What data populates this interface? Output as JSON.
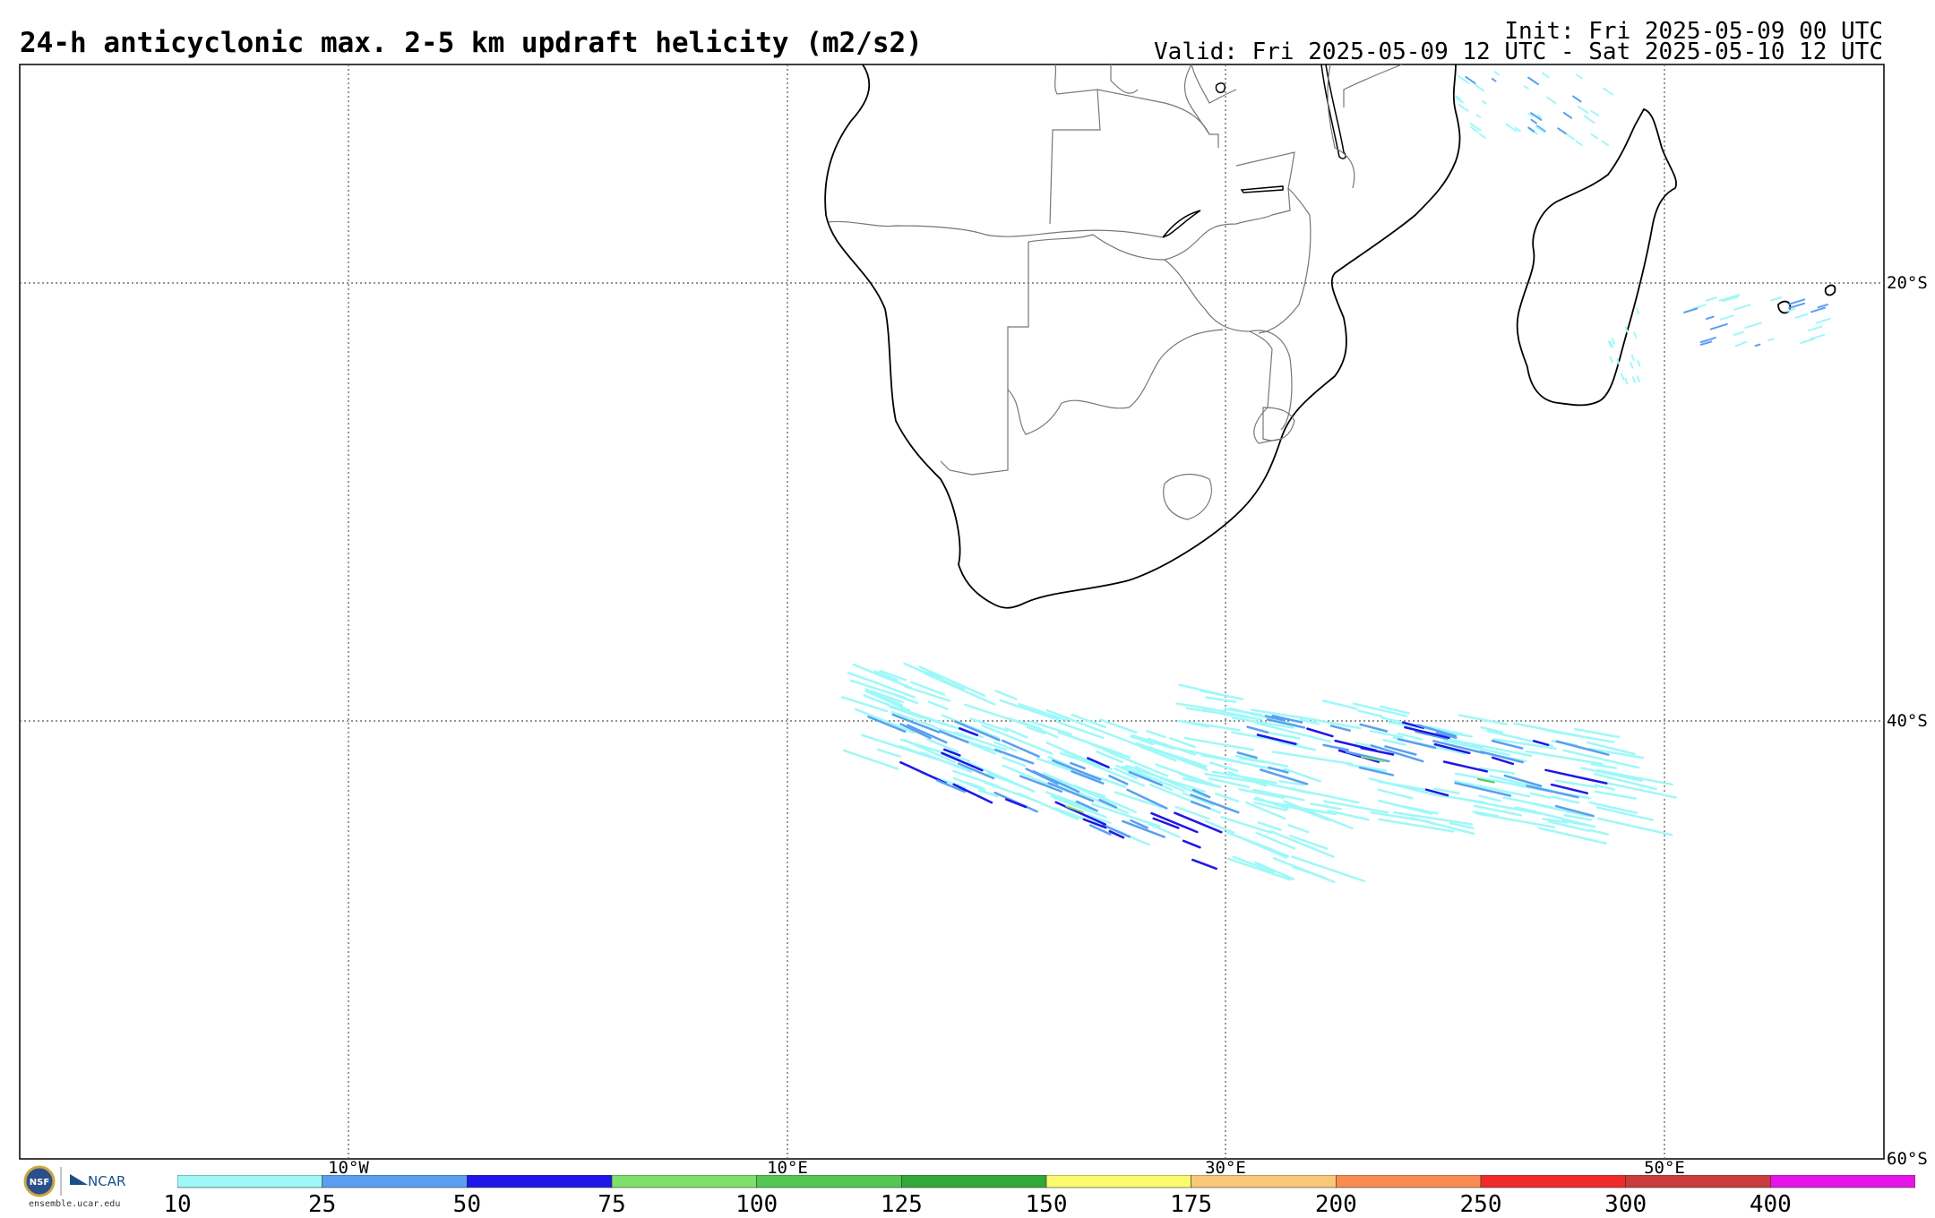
{
  "header": {
    "title": "24-h anticyclonic max. 2-5 km updraft helicity (m2/s2)",
    "init": "Init: Fri 2025-05-09 00 UTC",
    "valid": "Valid: Fri 2025-05-09 12 UTC - Sat 2025-05-10 12 UTC"
  },
  "map": {
    "lat_labels": [
      "20°S",
      "40°S",
      "60°S"
    ],
    "lon_labels": [
      "10°W",
      "10°E",
      "30°E",
      "50°E"
    ],
    "grid": "dotted"
  },
  "colorbar": {
    "labels": [
      "10",
      "25",
      "50",
      "75",
      "100",
      "125",
      "150",
      "175",
      "200",
      "250",
      "300",
      "400"
    ],
    "colors": [
      "#9ff8f8",
      "#5a9ff0",
      "#1e17e8",
      "#7ee06a",
      "#52c652",
      "#32a838",
      "#fafa6e",
      "#f8c878",
      "#f88c50",
      "#f02a28",
      "#c83c3c",
      "#e614e6"
    ]
  },
  "logos": {
    "nsf": "NSF",
    "ncar": "NCAR",
    "site": "ensemble.ucar.edu"
  }
}
